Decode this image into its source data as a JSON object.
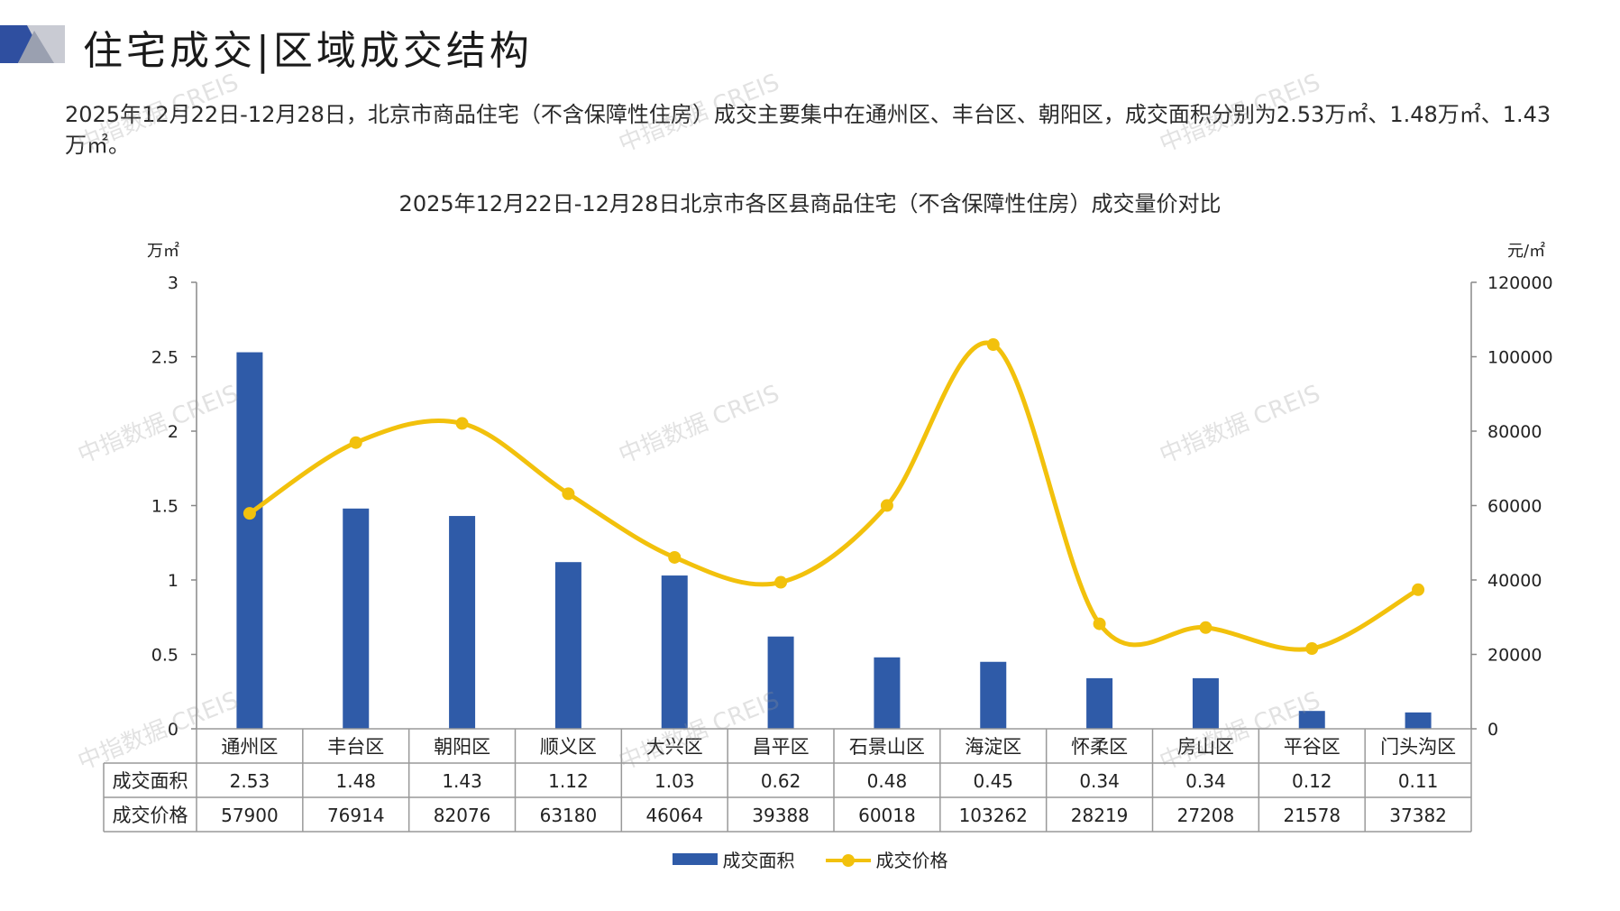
{
  "header": {
    "title": "住宅成交|区域成交结构"
  },
  "summary": "2025年12月22日-12月28日，北京市商品住宅（不含保障性住房）成交主要集中在通州区、丰台区、朝阳区，成交面积分别为2.53万㎡、1.48万㎡、1.43万㎡。",
  "watermark_text": "中指数据 CREIS",
  "colors": {
    "bar": "#2f5ba8",
    "line": "#f2c10c",
    "deco_dark": "#2f4fa0",
    "deco_light": "#c9cbd3"
  },
  "chart_data": {
    "type": "bar",
    "title": "2025年12月22日-12月28日北京市各区县商品住宅（不含保障性住房）成交量价对比",
    "categories": [
      "通州区",
      "丰台区",
      "朝阳区",
      "顺义区",
      "大兴区",
      "昌平区",
      "石景山区",
      "海淀区",
      "怀柔区",
      "房山区",
      "平谷区",
      "门头沟区"
    ],
    "series": [
      {
        "name": "成交面积",
        "type": "bar",
        "axis": "left",
        "values": [
          2.53,
          1.48,
          1.43,
          1.12,
          1.03,
          0.62,
          0.48,
          0.45,
          0.34,
          0.34,
          0.12,
          0.11
        ]
      },
      {
        "name": "成交价格",
        "type": "line",
        "axis": "right",
        "values": [
          57900,
          76914,
          82076,
          63180,
          46064,
          39388,
          60018,
          103262,
          28219,
          27208,
          21578,
          37382
        ]
      }
    ],
    "ylabel": "万㎡",
    "y2label": "元/㎡",
    "ylim": [
      0,
      3
    ],
    "y2lim": [
      0,
      120000
    ],
    "y_ticks": [
      "0",
      "0.5",
      "1",
      "1.5",
      "2",
      "2.5",
      "3"
    ],
    "y2_ticks": [
      "0",
      "20000",
      "40000",
      "60000",
      "80000",
      "100000",
      "120000"
    ],
    "table_display": [
      [
        "2.53",
        "1.48",
        "1.43",
        "1.12",
        "1.03",
        "0.62",
        "0.48",
        "0.45",
        "0.34",
        "0.34",
        "0.12",
        "0.11"
      ],
      [
        "57900",
        "76914",
        "82076",
        "63180",
        "46064",
        "39388",
        "60018",
        "103262",
        "28219",
        "27208",
        "21578",
        "37382"
      ]
    ],
    "legend_position": "bottom",
    "grid": false
  }
}
